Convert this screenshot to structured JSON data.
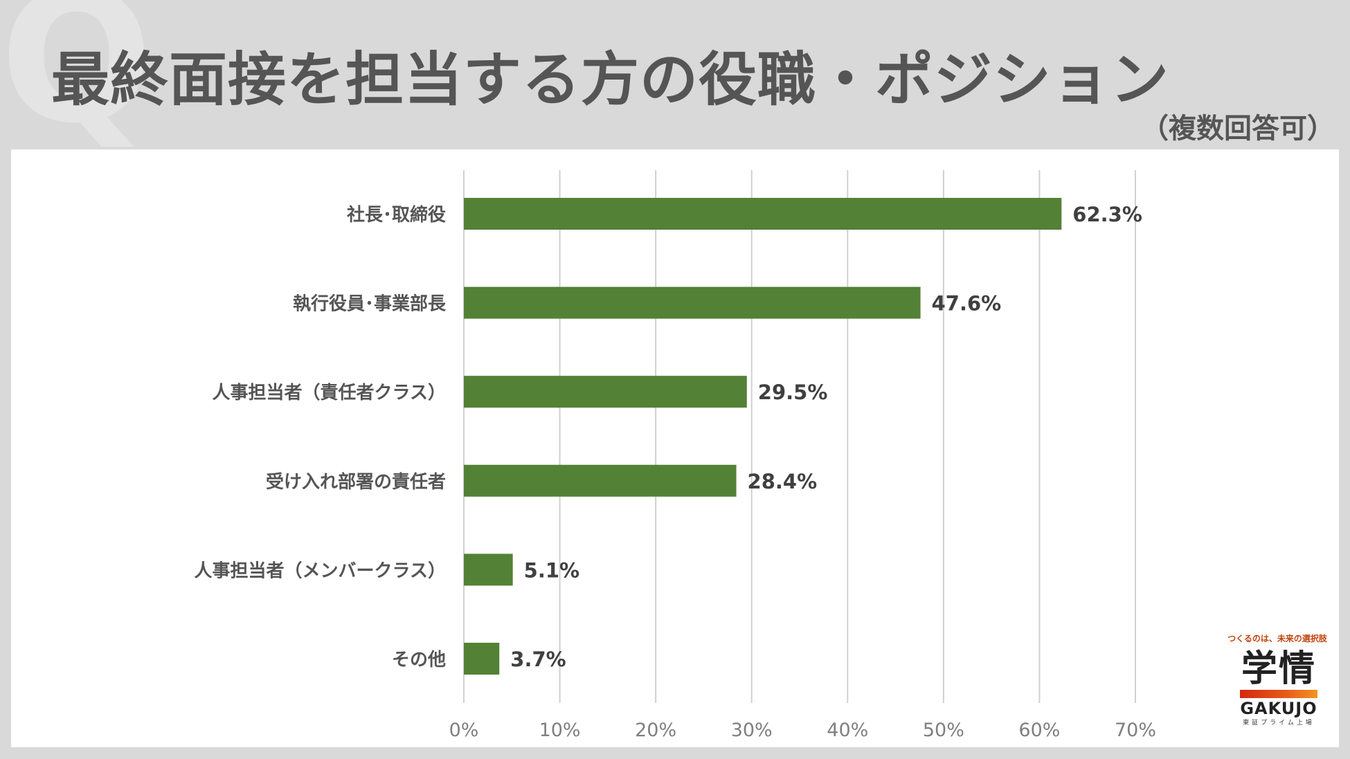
{
  "header": {
    "watermark": "Q",
    "title": "最終面接を担当する方の役職・ポジション",
    "subtitle": "（複数回答可）"
  },
  "chart_data": {
    "type": "bar",
    "orientation": "horizontal",
    "categories": [
      "社長･取締役",
      "執行役員･事業部長",
      "人事担当者（責任者クラス）",
      "受け入れ部署の責任者",
      "人事担当者（メンバークラス）",
      "その他"
    ],
    "values": [
      62.3,
      47.6,
      29.5,
      28.4,
      5.1,
      3.7
    ],
    "value_labels": [
      "62.3%",
      "47.6%",
      "29.5%",
      "28.4%",
      "5.1%",
      "3.7%"
    ],
    "xlim": [
      0,
      70
    ],
    "x_ticks": [
      0,
      10,
      20,
      30,
      40,
      50,
      60,
      70
    ],
    "x_tick_labels": [
      "0%",
      "10%",
      "20%",
      "30%",
      "40%",
      "50%",
      "60%",
      "70%"
    ],
    "grid": true,
    "bar_color": "#538135",
    "title": "最終面接を担当する方の役職・ポジション",
    "xlabel": "",
    "ylabel": ""
  },
  "logo": {
    "tagline": "つくるのは、未来の選択肢",
    "main": "学情",
    "en": "GAKUJO",
    "sub": "東証プライム上場"
  }
}
